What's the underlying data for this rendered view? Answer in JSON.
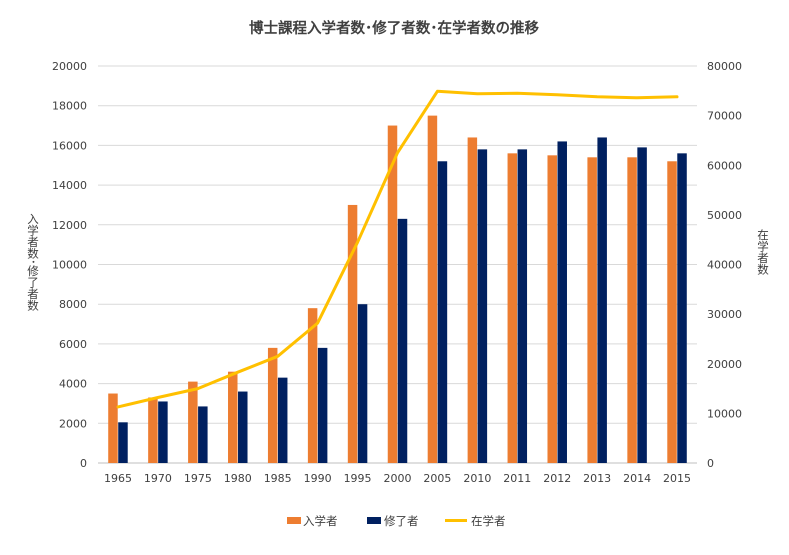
{
  "chart_data": {
    "type": "bar",
    "title": "博士課程入学者数･修了者数･在学者数の推移",
    "ylabel": "入学者数･修了者数",
    "y2label": "在学者数",
    "xlabel": "",
    "categories": [
      "1965",
      "1970",
      "1975",
      "1980",
      "1985",
      "1990",
      "1995",
      "2000",
      "2005",
      "2010",
      "2011",
      "2012",
      "2013",
      "2014",
      "2015"
    ],
    "ylim": [
      0,
      20000
    ],
    "y_ticks": [
      0,
      2000,
      4000,
      6000,
      8000,
      10000,
      12000,
      14000,
      16000,
      18000,
      20000
    ],
    "y_tick_labels": [
      "0",
      "2000",
      "4000",
      "6000",
      "8000",
      "10000",
      "12000",
      "14000",
      "16000",
      "18000",
      "20000"
    ],
    "y2lim": [
      0,
      80000
    ],
    "y2_ticks": [
      0,
      10000,
      20000,
      30000,
      40000,
      50000,
      60000,
      70000,
      80000
    ],
    "y2_tick_labels": [
      "0",
      "10000",
      "20000",
      "30000",
      "40000",
      "50000",
      "60000",
      "70000",
      "80000"
    ],
    "grid": true,
    "legend_position": "bottom",
    "series": [
      {
        "name": "入学者",
        "type": "bar",
        "axis": "left",
        "color": "#ED7D31",
        "values": [
          3500,
          3300,
          4100,
          4600,
          5800,
          7800,
          13000,
          17000,
          17500,
          16400,
          15600,
          15500,
          15400,
          15400,
          15200
        ]
      },
      {
        "name": "修了者",
        "type": "bar",
        "axis": "left",
        "color": "#002060",
        "values": [
          2050,
          3100,
          2850,
          3600,
          4300,
          5800,
          8000,
          12300,
          15200,
          15800,
          15800,
          16200,
          16400,
          15900,
          15600
        ]
      },
      {
        "name": "在学者",
        "type": "line",
        "axis": "right",
        "color": "#FFC000",
        "values": [
          11300,
          13200,
          15000,
          18300,
          21500,
          28200,
          44500,
          62500,
          74900,
          74400,
          74500,
          74200,
          73800,
          73600,
          73800
        ]
      }
    ]
  }
}
